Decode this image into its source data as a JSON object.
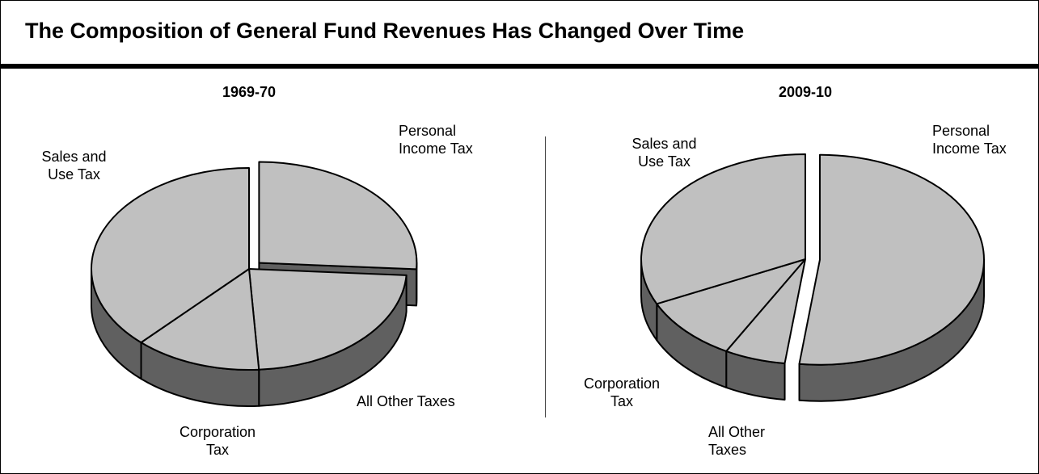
{
  "title": "The Composition of General Fund Revenues Has Changed Over Time",
  "chart_data": [
    {
      "type": "pie",
      "title": "1969-70",
      "categories": [
        "Personal Income Tax",
        "All Other Taxes",
        "Corporation Tax",
        "Sales and Use Tax"
      ],
      "values": [
        26,
        23,
        13,
        38
      ],
      "explode": [
        true,
        false,
        false,
        false
      ],
      "top_color": "#c0c0c0",
      "side_color": "#606060"
    },
    {
      "type": "pie",
      "title": "2009-10",
      "categories": [
        "Personal Income Tax",
        "All Other Taxes",
        "Corporation Tax",
        "Sales and Use Tax"
      ],
      "values": [
        52,
        6,
        10,
        32
      ],
      "explode": [
        true,
        false,
        false,
        false
      ],
      "top_color": "#c0c0c0",
      "side_color": "#606060"
    }
  ]
}
